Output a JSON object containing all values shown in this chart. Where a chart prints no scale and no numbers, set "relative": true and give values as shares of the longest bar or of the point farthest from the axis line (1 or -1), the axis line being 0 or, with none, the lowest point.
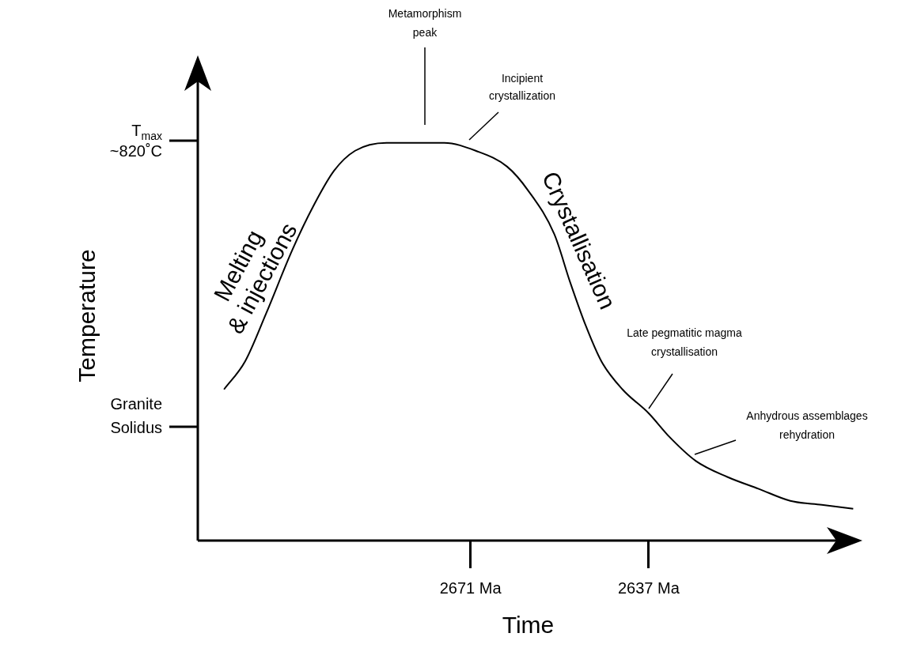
{
  "chart_data": {
    "type": "line",
    "relative": true,
    "xlabel": "Time",
    "ylabel": "Temperature",
    "x": [
      2718,
      2714,
      2710,
      2705,
      2701,
      2697,
      2693,
      2687,
      2681,
      2676,
      2670,
      2664,
      2660,
      2655,
      2652,
      2649,
      2646,
      2642,
      2637,
      2633,
      2628,
      2622,
      2616,
      2610,
      2604,
      2598
    ],
    "xlim": [
      2723,
      2597
    ],
    "xticks": [
      {
        "value": 2671,
        "label": "2671 Ma"
      },
      {
        "value": 2637,
        "label": "2637 Ma"
      }
    ],
    "series": [
      {
        "color": "#000000",
        "values": [
          0.38,
          0.45,
          0.57,
          0.73,
          0.84,
          0.93,
          0.98,
          1.0,
          1.0,
          1.0,
          0.98,
          0.94,
          0.88,
          0.77,
          0.65,
          0.54,
          0.45,
          0.38,
          0.32,
          0.26,
          0.2,
          0.16,
          0.13,
          0.1,
          0.09,
          0.08
        ]
      }
    ],
    "marker": "none",
    "line_style": "solid",
    "grid": false,
    "legend": false,
    "annotations": [
      "T$_{max}$ ~820˚C",
      "Granite Solidus",
      "Metamorphism peak",
      "Incipient crystallization",
      "Late pegmatitic magma crystallisation",
      "Anhydrous assemblages rehydration",
      "Melting & injections",
      "Crystallisation"
    ]
  }
}
